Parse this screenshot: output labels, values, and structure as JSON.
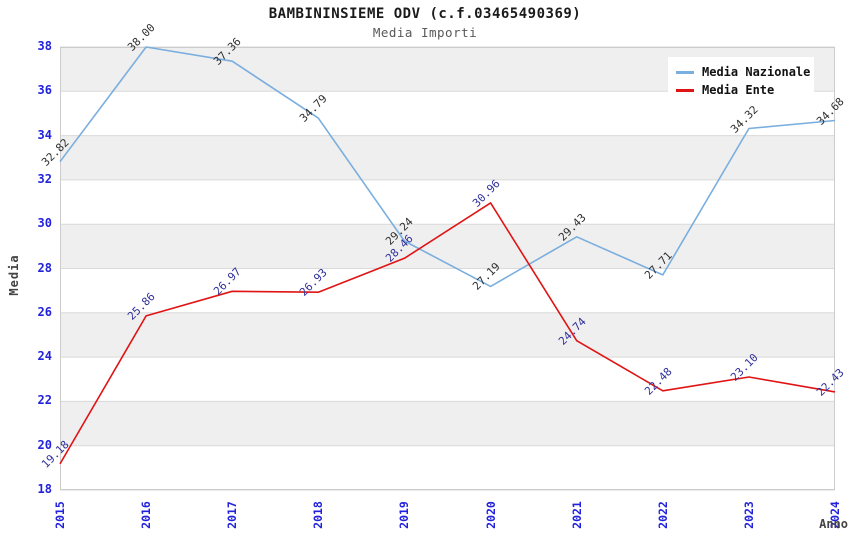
{
  "header": {
    "title": "BAMBININSIEME ODV (c.f.03465490369)",
    "subtitle": "Media Importi"
  },
  "axes": {
    "y_label": "Media",
    "x_label": "Anno"
  },
  "chart_data": {
    "type": "line",
    "title": "BAMBININSIEME ODV (c.f.03465490369)",
    "subtitle": "Media Importi",
    "xlabel": "Anno",
    "ylabel": "Media",
    "x": [
      "2015",
      "2016",
      "2017",
      "2018",
      "2019",
      "2020",
      "2021",
      "2022",
      "2023",
      "2024"
    ],
    "series": [
      {
        "name": "Media Nazionale",
        "color": "#7AAEDE",
        "label_color": "#303030",
        "values": [
          32.82,
          38.0,
          37.36,
          34.79,
          29.24,
          27.19,
          29.43,
          27.71,
          34.32,
          34.68
        ]
      },
      {
        "name": "Media Ente",
        "color": "#E01414",
        "label_color": "#31319B",
        "values": [
          19.18,
          25.86,
          26.97,
          26.93,
          28.46,
          30.96,
          24.74,
          22.48,
          23.1,
          22.43
        ]
      }
    ],
    "ylim": [
      18,
      38
    ],
    "ytick_step": 2,
    "grid": "horizontal",
    "gridline_color": "#DADADA",
    "border_color": "#CCCCCC",
    "band_color": "#EFEFEF",
    "bands": [
      [
        20,
        22
      ],
      [
        24,
        26
      ],
      [
        28,
        30
      ],
      [
        32,
        34
      ],
      [
        36,
        38
      ]
    ],
    "tick_color": "#2222DD",
    "legend_position": "top-right",
    "point_labels": "values shown rotated 45deg above each point, format 0.00"
  }
}
